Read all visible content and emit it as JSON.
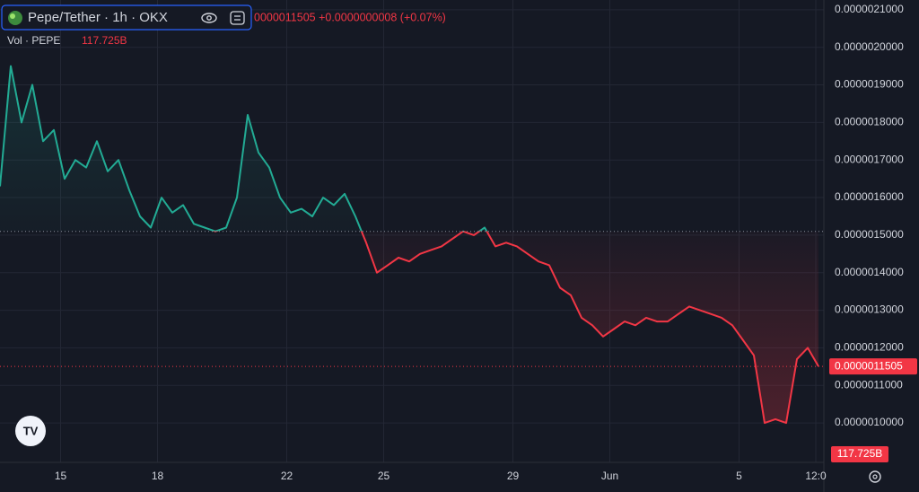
{
  "chart_data": {
    "type": "line",
    "title": "Pepe/Tether · 1h · OKX",
    "legend_quote": "0000011505 +0.0000000008 (+0.07%)",
    "volume_label": "Vol · PEPE",
    "volume_value": "117.725B",
    "x": [
      0,
      8,
      16,
      24,
      32,
      40,
      48,
      56,
      64,
      72,
      80,
      88,
      96,
      104,
      112,
      120,
      128,
      136,
      144,
      152,
      160,
      168,
      176,
      184,
      192,
      200,
      208,
      216,
      224,
      232,
      240,
      248,
      256,
      264,
      272,
      280,
      288,
      296,
      304,
      312,
      320,
      328,
      336,
      344,
      352,
      360,
      368,
      376,
      384,
      392,
      400,
      408,
      416,
      424,
      432,
      440,
      448,
      456,
      464,
      472,
      480,
      488,
      496,
      504,
      512,
      520,
      528,
      536,
      544,
      552,
      560,
      568,
      576,
      584,
      592,
      600,
      608
    ],
    "series": [
      {
        "values": [
          1.63e-06,
          1.95e-06,
          1.8e-06,
          1.9e-06,
          1.75e-06,
          1.78e-06,
          1.65e-06,
          1.7e-06,
          1.68e-06,
          1.75e-06,
          1.67e-06,
          1.7e-06,
          1.62e-06,
          1.55e-06,
          1.52e-06,
          1.6e-06,
          1.56e-06,
          1.58e-06,
          1.53e-06,
          1.52e-06,
          1.51e-06,
          1.52e-06,
          1.6e-06,
          1.82e-06,
          1.72e-06,
          1.68e-06,
          1.6e-06,
          1.56e-06,
          1.57e-06,
          1.55e-06,
          1.6e-06,
          1.58e-06,
          1.61e-06,
          1.55e-06,
          1.48e-06,
          1.4e-06,
          1.42e-06,
          1.44e-06,
          1.43e-06,
          1.45e-06,
          1.46e-06,
          1.47e-06,
          1.49e-06,
          1.51e-06,
          1.5e-06,
          1.52e-06,
          1.47e-06,
          1.48e-06,
          1.47e-06,
          1.45e-06,
          1.43e-06,
          1.42e-06,
          1.36e-06,
          1.34e-06,
          1.28e-06,
          1.26e-06,
          1.23e-06,
          1.25e-06,
          1.27e-06,
          1.26e-06,
          1.28e-06,
          1.27e-06,
          1.27e-06,
          1.29e-06,
          1.31e-06,
          1.3e-06,
          1.29e-06,
          1.28e-06,
          1.26e-06,
          1.22e-06,
          1.18e-06,
          1e-06,
          1.01e-06,
          1e-06,
          1.17e-06,
          1.2e-06,
          1.1505e-06
        ],
        "up_color": "#22ab94",
        "down_color": "#f23645"
      }
    ],
    "baseline": 1.51e-06,
    "last_price": {
      "value": 1.1505e-06,
      "label": "0.0000011505"
    },
    "xlim": [
      0,
      612
    ],
    "xticks": [
      {
        "value": 45,
        "label": "15"
      },
      {
        "value": 117,
        "label": "18"
      },
      {
        "value": 213,
        "label": "22"
      },
      {
        "value": 285,
        "label": "25"
      },
      {
        "value": 381,
        "label": "29"
      },
      {
        "value": 453,
        "label": "Jun"
      },
      {
        "value": 549,
        "label": "5"
      },
      {
        "value": 606,
        "label": "12:0"
      }
    ],
    "ylim": [
      8.95e-07,
      2.126e-06
    ],
    "yticks": [
      {
        "value": 1e-06,
        "label": "0.0000010000"
      },
      {
        "value": 1.1e-06,
        "label": "0.0000011000"
      },
      {
        "value": 1.2e-06,
        "label": "0.0000012000"
      },
      {
        "value": 1.3e-06,
        "label": "0.0000013000"
      },
      {
        "value": 1.4e-06,
        "label": "0.0000014000"
      },
      {
        "value": 1.5e-06,
        "label": "0.0000015000"
      },
      {
        "value": 1.6e-06,
        "label": "0.0000016000"
      },
      {
        "value": 1.7e-06,
        "label": "0.0000017000"
      },
      {
        "value": 1.8e-06,
        "label": "0.0000018000"
      },
      {
        "value": 1.9e-06,
        "label": "0.0000019000"
      },
      {
        "value": 2e-06,
        "label": "0.0000020000"
      },
      {
        "value": 2.1e-06,
        "label": "0.0000021000"
      }
    ],
    "grid": true
  }
}
